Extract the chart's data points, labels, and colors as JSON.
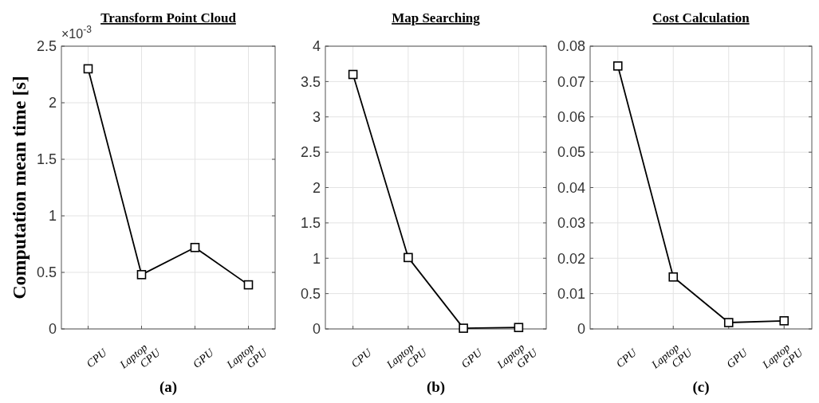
{
  "chart_data": [
    {
      "type": "line",
      "title": "Transform Point Cloud",
      "ylabel": "Computation mean time [s]",
      "categories": [
        "CPU",
        "Laptop CPU",
        "GPU",
        "Laptop GPU"
      ],
      "series": [
        {
          "color": "#000000",
          "values": [
            2.3,
            0.48,
            0.72,
            0.39
          ]
        }
      ],
      "ylim": [
        0,
        2.5
      ],
      "yticks": [
        0,
        0.5,
        1,
        1.5,
        2,
        2.5
      ],
      "grid": true,
      "marker": "square",
      "line_style": "solid",
      "annotations": [
        "×10$^{-3}$",
        "(a)"
      ]
    },
    {
      "type": "line",
      "title": "Map Searching",
      "categories": [
        "CPU",
        "Laptop CPU",
        "GPU",
        "Laptop GPU"
      ],
      "series": [
        {
          "color": "#000000",
          "values": [
            3.6,
            1.01,
            0.01,
            0.02
          ]
        }
      ],
      "ylim": [
        0,
        4
      ],
      "yticks": [
        0,
        0.5,
        1,
        1.5,
        2,
        2.5,
        3,
        3.5,
        4
      ],
      "grid": true,
      "marker": "square",
      "line_style": "solid",
      "annotations": [
        "(b)"
      ]
    },
    {
      "type": "line",
      "title": "Cost Calculation",
      "categories": [
        "CPU",
        "Laptop CPU",
        "GPU",
        "Laptop GPU"
      ],
      "series": [
        {
          "color": "#000000",
          "values": [
            0.0744,
            0.0147,
            0.0018,
            0.0023
          ]
        }
      ],
      "ylim": [
        0,
        0.08
      ],
      "yticks": [
        0,
        0.01,
        0.02,
        0.03,
        0.04,
        0.05,
        0.06,
        0.07,
        0.08
      ],
      "grid": true,
      "marker": "square",
      "line_style": "solid",
      "annotations": [
        "(c)"
      ]
    }
  ]
}
